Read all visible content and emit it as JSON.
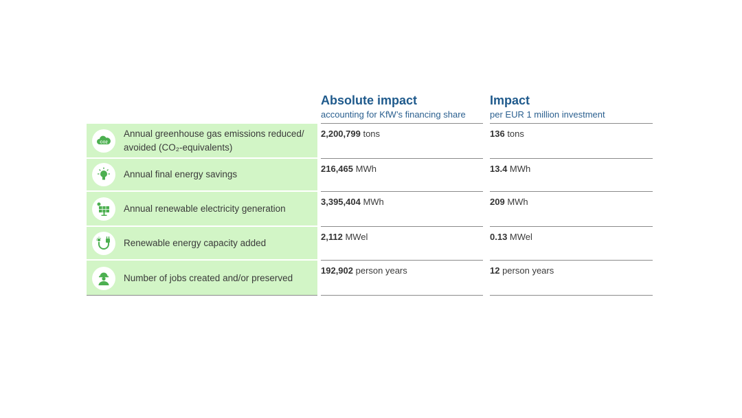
{
  "header": {
    "absolute": {
      "title": "Absolute impact",
      "subtitle": "accounting for KfW’s financing share"
    },
    "relative": {
      "title": "Impact",
      "subtitle": "per EUR 1 million investment"
    }
  },
  "colors": {
    "green_cell": "#d2f5c6",
    "icon_green": "#4caf50",
    "heading_blue": "#1f5a8c"
  },
  "rows": [
    {
      "icon": "cloud-co2-icon",
      "label": "Annual greenhouse gas emissions reduced/ avoided (CO₂-equivalents)",
      "absolute_value": "2,200,799",
      "absolute_unit": " tons",
      "relative_value": "136",
      "relative_unit": " tons"
    },
    {
      "icon": "lightbulb-icon",
      "label": "Annual final energy savings",
      "absolute_value": "216,465",
      "absolute_unit": " MWh",
      "relative_value": "13.4",
      "relative_unit": " MWh"
    },
    {
      "icon": "solar-panel-icon",
      "label": "Annual renewable electricity generation",
      "absolute_value": "3,395,404",
      "absolute_unit": " MWh",
      "relative_value": "209",
      "relative_unit": " MWh"
    },
    {
      "icon": "plug-icon",
      "label": "Renewable energy capacity added",
      "absolute_value": "2,112",
      "absolute_unit": " MWel",
      "relative_value": "0.13",
      "relative_unit": " MWel"
    },
    {
      "icon": "worker-icon",
      "label": "Number of jobs created and/or preserved",
      "absolute_value": "192,902",
      "absolute_unit": " person years",
      "relative_value": "12",
      "relative_unit": " person years"
    }
  ]
}
